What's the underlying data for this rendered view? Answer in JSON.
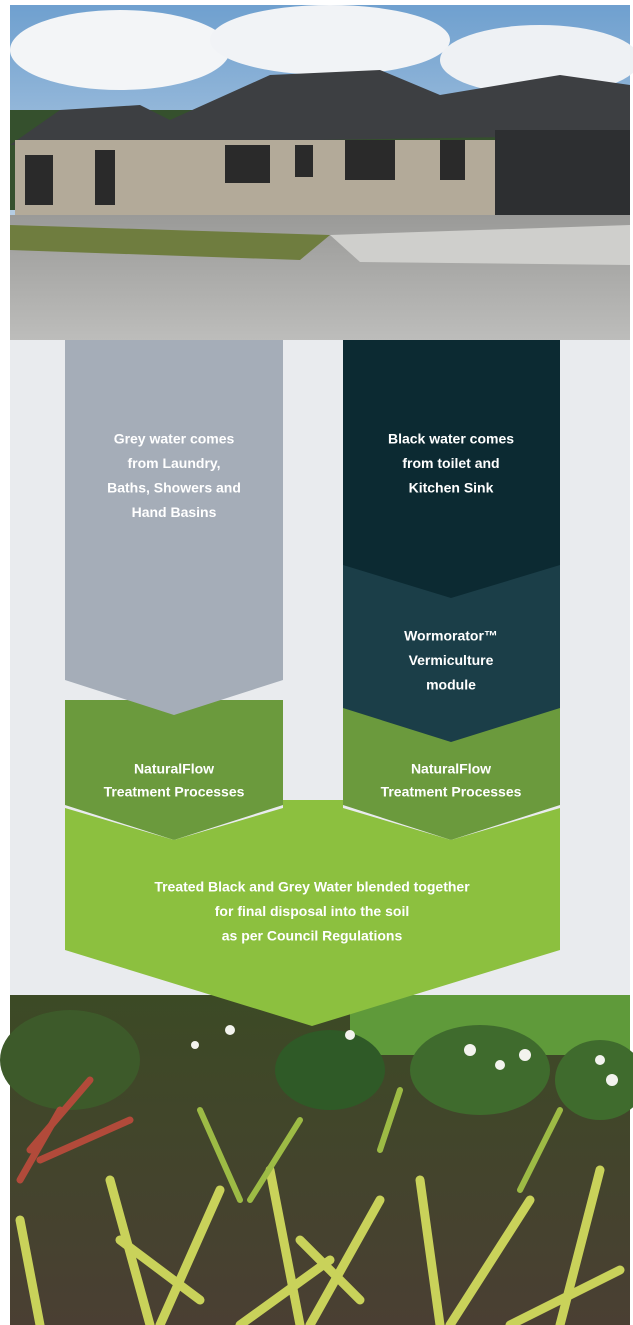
{
  "diagram": {
    "nodes": [
      {
        "lines": [
          "Grey water comes",
          "from Laundry,",
          "Baths, Showers and",
          "Hand Basins"
        ]
      },
      {
        "lines": [
          "Black water comes",
          "from toilet and",
          "Kitchen Sink"
        ]
      },
      {
        "lines": [
          "Wormorator™",
          "Vermiculture",
          "module"
        ]
      },
      {
        "lines": [
          "NaturalFlow",
          "Treatment Processes"
        ]
      },
      {
        "lines": [
          "NaturalFlow",
          "Treatment Processes"
        ]
      },
      {
        "lines": [
          "Treated Black and Grey Water blended together",
          "for final disposal into the soil",
          "as per Council Regulations"
        ]
      }
    ]
  }
}
